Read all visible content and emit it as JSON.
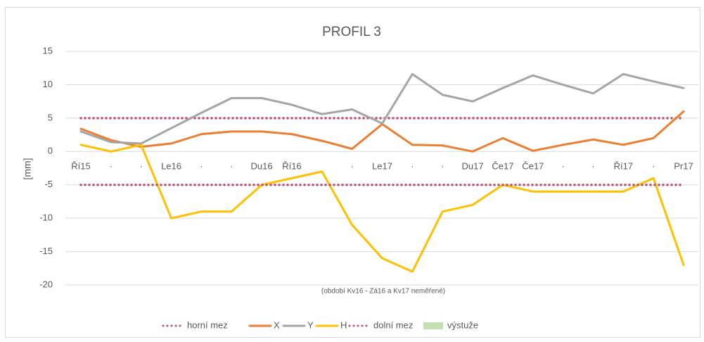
{
  "chart_data": {
    "type": "line",
    "title": "PROFIL 3",
    "subtitle": "(období Kv16 - Zá16 a Kv17 neměřené)",
    "y_label": "[mm]",
    "categories": [
      "Ří15",
      "·",
      "·",
      "Le16",
      "·",
      "·",
      "Du16",
      "Ří16",
      null,
      "·",
      "Le17",
      "·",
      "·",
      "Du17",
      "Če17",
      "Če17",
      "·",
      "·",
      "Ří17",
      "·",
      "Pr17"
    ],
    "series": [
      {
        "name": "horní mez",
        "color": "#c0506e",
        "dotted": true,
        "values": [
          5,
          5,
          5,
          5,
          5,
          5,
          5,
          5,
          5,
          5,
          5,
          5,
          5,
          5,
          5,
          5,
          5,
          5,
          5,
          5,
          5
        ]
      },
      {
        "name": "X",
        "color": "#ed7d31",
        "values": [
          3.4,
          1.7,
          0.7,
          1.2,
          2.6,
          3,
          3,
          2.6,
          1.6,
          0.4,
          4.1,
          1,
          0.9,
          0,
          2,
          0.1,
          1,
          1.8,
          1,
          2,
          6
        ]
      },
      {
        "name": "Y",
        "color": "#a5a5a5",
        "values": [
          3,
          1.4,
          1.2,
          3.5,
          5.8,
          8,
          8,
          7,
          5.6,
          6.3,
          4.2,
          11.6,
          8.5,
          7.5,
          9.5,
          11.4,
          10,
          8.7,
          11.6,
          10.5,
          9.5
        ]
      },
      {
        "name": "H",
        "color": "#ffc000",
        "values": [
          1,
          0,
          1,
          -10,
          -9,
          -9,
          -5,
          -4,
          -3,
          -11,
          -16,
          -18,
          -9,
          -8,
          -5,
          -6,
          -6,
          -6,
          -6,
          -4,
          -17
        ]
      },
      {
        "name": "dolní mez",
        "color": "#c0506e",
        "dotted": true,
        "values": [
          -5,
          -5,
          -5,
          -5,
          -5,
          -5,
          -5,
          -5,
          -5,
          -5,
          -5,
          -5,
          -5,
          -5,
          -5,
          -5,
          -5,
          -5,
          -5,
          -5,
          -5
        ]
      },
      {
        "name": "výstuže",
        "color": "#c5e0b4",
        "patch": true,
        "values": [
          null,
          null,
          null,
          null,
          null,
          null,
          null,
          null,
          null,
          null,
          null,
          null,
          null,
          null,
          null,
          null,
          null,
          null,
          null,
          null,
          null
        ]
      }
    ],
    "ylim": [
      -20,
      15
    ],
    "yticks": [
      -20,
      -15,
      -10,
      -5,
      0,
      5,
      10,
      15
    ],
    "grid": true,
    "legend": "bottom"
  }
}
